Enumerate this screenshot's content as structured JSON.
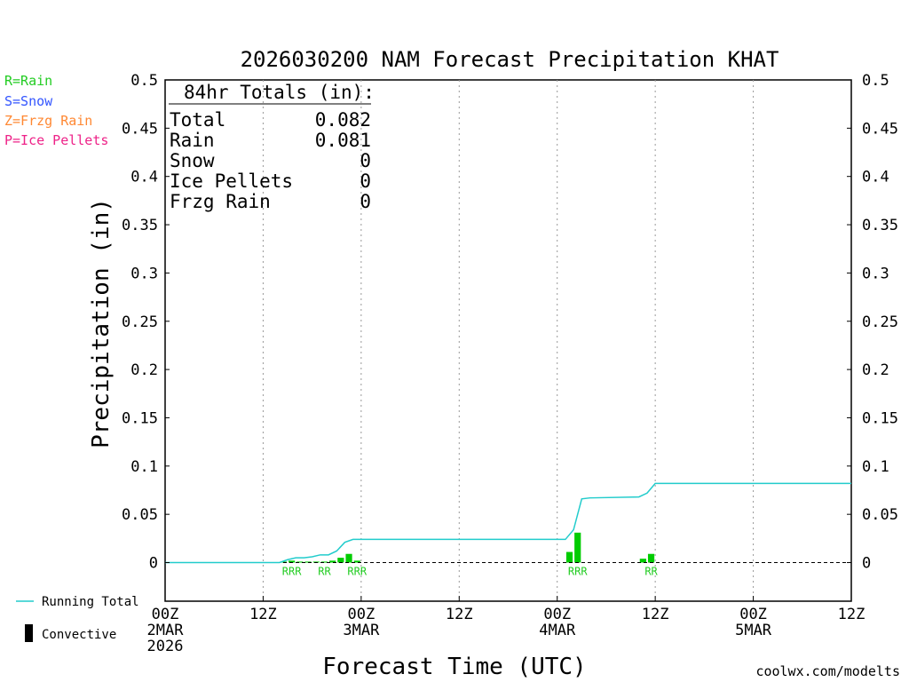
{
  "chart_data": {
    "type": "bar+line",
    "title": "2026030200 NAM Forecast Precipitation KHAT",
    "ylabel": "Precipitation (in)",
    "xlabel": "Forecast Time (UTC)",
    "ylim": [
      -0.04,
      0.5
    ],
    "xlim_hours": [
      0,
      84
    ],
    "y_ticks": [
      "0.5",
      "0.45",
      "0.4",
      "0.35",
      "0.3",
      "0.25",
      "0.2",
      "0.15",
      "0.1",
      "0.05",
      "0"
    ],
    "y_tick_values": [
      0.5,
      0.45,
      0.4,
      0.35,
      0.3,
      0.25,
      0.2,
      0.15,
      0.1,
      0.05,
      0
    ],
    "x_ticks": [
      {
        "hour": 0,
        "lines": [
          "00Z",
          "2MAR",
          "2026"
        ]
      },
      {
        "hour": 12,
        "lines": [
          "12Z"
        ]
      },
      {
        "hour": 24,
        "lines": [
          "00Z",
          "3MAR"
        ]
      },
      {
        "hour": 36,
        "lines": [
          "12Z"
        ]
      },
      {
        "hour": 48,
        "lines": [
          "00Z",
          "4MAR"
        ]
      },
      {
        "hour": 60,
        "lines": [
          "12Z"
        ]
      },
      {
        "hour": 72,
        "lines": [
          "00Z",
          "5MAR"
        ]
      },
      {
        "hour": 84,
        "lines": [
          "12Z"
        ]
      }
    ],
    "totals": {
      "header": "84hr Totals (in):",
      "rows": [
        {
          "label": "Total",
          "value": "0.082"
        },
        {
          "label": "Rain",
          "value": "0.081"
        },
        {
          "label": "Snow",
          "value": "0"
        },
        {
          "label": "Ice Pellets",
          "value": "0"
        },
        {
          "label": "Frzg Rain",
          "value": "0"
        }
      ]
    },
    "type_legend": [
      {
        "label": "R=Rain",
        "color": "#22cc22"
      },
      {
        "label": "S=Snow",
        "color": "#3355ff"
      },
      {
        "label": "Z=Frzg Rain",
        "color": "#ff8833"
      },
      {
        "label": "P=Ice Pellets",
        "color": "#ee2288"
      }
    ],
    "series_legend": {
      "running_total": "Running Total",
      "convective": "Convective"
    },
    "bar_color": "#00cc00",
    "line_color": "#22cccc",
    "precip_bars": [
      {
        "hour": 15,
        "value": 0.001
      },
      {
        "hour": 16,
        "value": 0.002
      },
      {
        "hour": 17,
        "value": 0.001
      },
      {
        "hour": 18,
        "value": 0.001
      },
      {
        "hour": 19,
        "value": 0.001
      },
      {
        "hour": 20,
        "value": 0.001
      },
      {
        "hour": 21,
        "value": 0.002
      },
      {
        "hour": 22,
        "value": 0.005
      },
      {
        "hour": 23,
        "value": 0.009
      },
      {
        "hour": 24,
        "value": 0.002
      },
      {
        "hour": 50,
        "value": 0.011
      },
      {
        "hour": 51,
        "value": 0.031
      },
      {
        "hour": 59,
        "value": 0.004
      },
      {
        "hour": 60,
        "value": 0.009
      }
    ],
    "running_total": [
      {
        "hour": 0,
        "value": 0
      },
      {
        "hour": 14,
        "value": 0
      },
      {
        "hour": 15,
        "value": 0.003
      },
      {
        "hour": 16,
        "value": 0.005
      },
      {
        "hour": 17,
        "value": 0.005
      },
      {
        "hour": 18,
        "value": 0.006
      },
      {
        "hour": 19,
        "value": 0.008
      },
      {
        "hour": 20,
        "value": 0.008
      },
      {
        "hour": 21,
        "value": 0.012
      },
      {
        "hour": 22,
        "value": 0.021
      },
      {
        "hour": 23,
        "value": 0.024
      },
      {
        "hour": 49,
        "value": 0.024
      },
      {
        "hour": 50,
        "value": 0.034
      },
      {
        "hour": 51,
        "value": 0.066
      },
      {
        "hour": 52,
        "value": 0.067
      },
      {
        "hour": 58,
        "value": 0.068
      },
      {
        "hour": 59,
        "value": 0.072
      },
      {
        "hour": 60,
        "value": 0.082
      },
      {
        "hour": 84,
        "value": 0.082
      }
    ],
    "ptype_flags": [
      {
        "hour": 15.5,
        "text": "RRR"
      },
      {
        "hour": 19.5,
        "text": "RR"
      },
      {
        "hour": 23.5,
        "text": "RRR"
      },
      {
        "hour": 50.5,
        "text": "RRR"
      },
      {
        "hour": 59.5,
        "text": "RR"
      }
    ]
  },
  "credit": "coolwx.com/modelts"
}
